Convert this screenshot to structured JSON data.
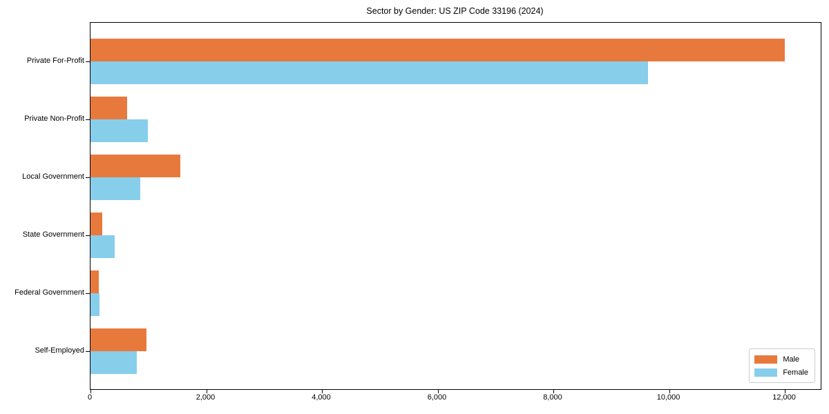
{
  "title": "Sector by Gender: US ZIP Code 33196 (2024)",
  "chart_data": {
    "type": "bar",
    "orientation": "horizontal",
    "title": "Sector by Gender: US ZIP Code 33196 (2024)",
    "xlabel": "",
    "ylabel": "",
    "categories": [
      "Private For-Profit",
      "Private Non-Profit",
      "Local Government",
      "State Government",
      "Federal Government",
      "Self-Employed"
    ],
    "series": [
      {
        "name": "Male",
        "color": "#e8793d",
        "values": [
          12000,
          630,
          1550,
          200,
          140,
          970
        ]
      },
      {
        "name": "Female",
        "color": "#87ceeb",
        "values": [
          9640,
          990,
          860,
          420,
          150,
          800
        ]
      }
    ],
    "xlim": [
      0,
      12620
    ],
    "xticks": [
      0,
      2000,
      4000,
      6000,
      8000,
      10000,
      12000
    ],
    "xtick_labels": [
      "0",
      "2,000",
      "4,000",
      "6,000",
      "8,000",
      "10,000",
      "12,000"
    ],
    "grid": false,
    "legend": {
      "position": "lower right",
      "entries": [
        "Male",
        "Female"
      ]
    }
  }
}
